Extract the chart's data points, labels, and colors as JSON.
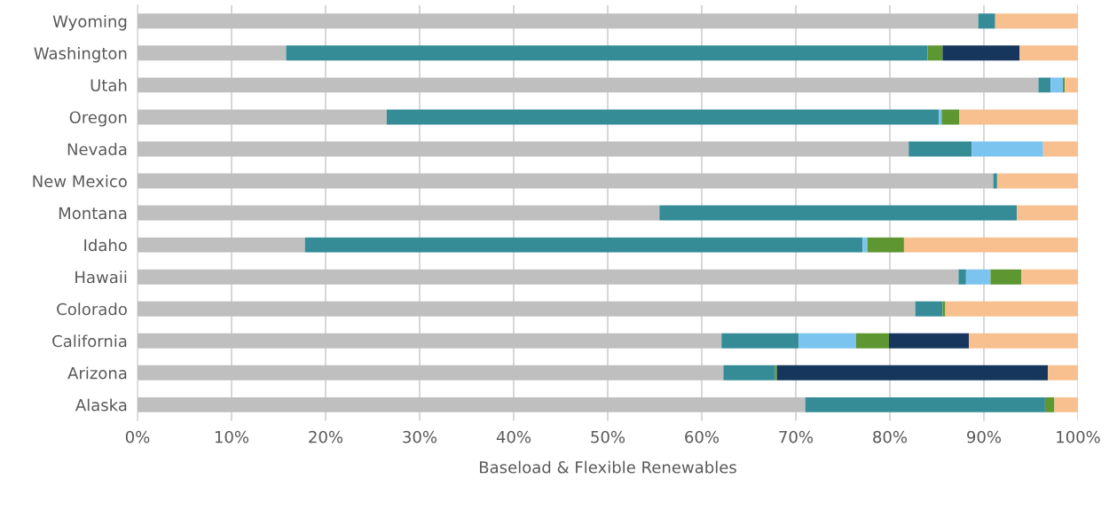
{
  "chart_data": {
    "type": "bar",
    "orientation": "horizontal",
    "stacked": true,
    "xlabel": "Baseload & Flexible Renewables",
    "categories": [
      "Wyoming",
      "Washington",
      "Utah",
      "Oregon",
      "Nevada",
      "New Mexico",
      "Montana",
      "Idaho",
      "Hawaii",
      "Colorado",
      "California",
      "Arizona",
      "Alaska"
    ],
    "series": [
      {
        "color": "#bfbfbf",
        "values": [
          89.4,
          15.8,
          95.8,
          26.5,
          82.0,
          91.0,
          55.5,
          17.8,
          87.3,
          82.7,
          62.1,
          62.3,
          71.0
        ]
      },
      {
        "color": "#358c96",
        "values": [
          1.8,
          68.2,
          1.3,
          58.7,
          6.7,
          0.4,
          38.0,
          59.3,
          0.8,
          2.9,
          8.2,
          5.5,
          25.5
        ]
      },
      {
        "color": "#7cc4f0",
        "values": [
          0,
          0,
          1.3,
          0.3,
          7.6,
          0,
          0,
          0.5,
          2.6,
          0,
          6.1,
          0,
          0
        ]
      },
      {
        "color": "#5e9632",
        "values": [
          0,
          1.6,
          0.2,
          1.9,
          0,
          0,
          0,
          3.9,
          3.3,
          0.3,
          3.5,
          0.2,
          1.0
        ]
      },
      {
        "color": "#17365d",
        "values": [
          0,
          8.2,
          0,
          0,
          0,
          0,
          0,
          0,
          0,
          0,
          8.5,
          28.8,
          0
        ]
      },
      {
        "color": "#f8c08f",
        "values": [
          8.8,
          6.2,
          1.4,
          12.6,
          3.7,
          8.6,
          6.5,
          18.5,
          6.0,
          14.1,
          11.6,
          3.2,
          2.5
        ]
      }
    ],
    "xlim": [
      0,
      100
    ],
    "xticks": [
      {
        "value": 0,
        "label": "0%"
      },
      {
        "value": 10,
        "label": "10%"
      },
      {
        "value": 20,
        "label": "20%"
      },
      {
        "value": 30,
        "label": "30%"
      },
      {
        "value": 40,
        "label": "40%"
      },
      {
        "value": 50,
        "label": "50%"
      },
      {
        "value": 60,
        "label": "60%"
      },
      {
        "value": 70,
        "label": "70%"
      },
      {
        "value": 80,
        "label": "80%"
      },
      {
        "value": 90,
        "label": "90%"
      },
      {
        "value": 100,
        "label": "100%"
      }
    ],
    "grid": "x",
    "legend": false
  }
}
